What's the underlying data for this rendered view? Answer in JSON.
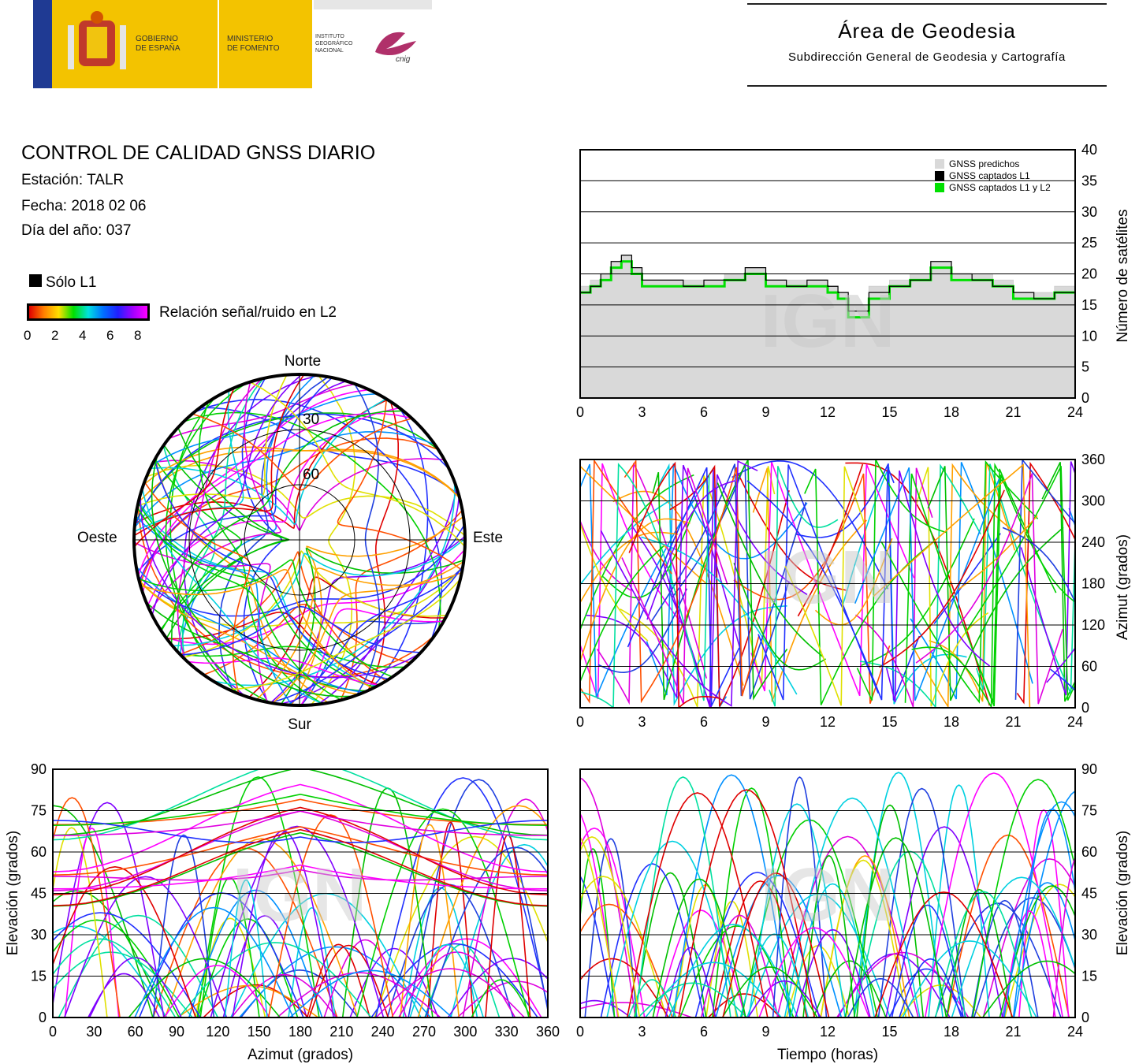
{
  "header": {
    "gov1": "GOBIERNO",
    "gov2": "DE ESPAÑA",
    "min1": "MINISTERIO",
    "min2": "DE FOMENTO",
    "inst1": "INSTITUTO",
    "inst2": "GEOGRÁFICO",
    "inst3": "NACIONAL",
    "cnig": "cnig",
    "area": "Área de Geodesia",
    "sub": "Subdirección General de Geodesia y Cartografía"
  },
  "info": {
    "title": "CONTROL DE CALIDAD GNSS DIARIO",
    "station": "Estación: TALR",
    "date": "Fecha: 2018 02 06",
    "doy": "Día del año: 037"
  },
  "legend": {
    "l1only": "Sólo L1",
    "snr": "Relación señal/ruido en L2",
    "ticks": [
      "0",
      "2",
      "4",
      "6",
      "8"
    ]
  },
  "watermark": "IGN",
  "colors": {
    "accent_yellow": "#f3c300",
    "predicted": "#d9d9d9",
    "l1": "#000000",
    "l1l2": "#00e000"
  },
  "skyplot": {
    "north": "Norte",
    "south": "Sur",
    "east": "Este",
    "west": "Oeste",
    "rings": [
      "30",
      "60"
    ]
  },
  "chart_data": [
    {
      "type": "line",
      "title": "",
      "xlabel": "",
      "ylabel": "Número de satélites",
      "xlim": [
        0,
        24
      ],
      "ylim": [
        0,
        40
      ],
      "xticks": [
        "0",
        "3",
        "6",
        "9",
        "12",
        "15",
        "18",
        "21",
        "24"
      ],
      "yticks": [
        "0",
        "5",
        "10",
        "15",
        "20",
        "25",
        "30",
        "35",
        "40"
      ],
      "legend": [
        "GNSS predichos",
        "GNSS captados L1",
        "GNSS captados L1 y L2"
      ],
      "legend_position": "top-right",
      "series": [
        {
          "name": "GNSS predichos",
          "x": [
            0,
            0.5,
            1,
            1.5,
            2,
            2.5,
            3,
            4,
            5,
            6,
            7,
            8,
            9,
            10,
            11,
            12,
            12.5,
            13,
            13.5,
            14,
            15,
            16,
            17,
            18,
            19,
            20,
            21,
            22,
            23,
            24
          ],
          "values": [
            18,
            19,
            20,
            22,
            23,
            21,
            19,
            19,
            19,
            19,
            20,
            21,
            19,
            19,
            19,
            18,
            17,
            15,
            15,
            18,
            19,
            20,
            22,
            20,
            20,
            19,
            17,
            17,
            18,
            18
          ]
        },
        {
          "name": "GNSS captados L1",
          "x": [
            0,
            0.5,
            1,
            1.5,
            2,
            2.5,
            3,
            4,
            5,
            6,
            7,
            8,
            9,
            10,
            11,
            12,
            12.5,
            13,
            13.5,
            14,
            15,
            16,
            17,
            18,
            19,
            20,
            21,
            22,
            23,
            24
          ],
          "values": [
            17,
            18,
            20,
            22,
            23,
            21,
            19,
            19,
            18,
            19,
            19,
            21,
            19,
            18,
            19,
            18,
            17,
            14,
            14,
            17,
            18,
            19,
            22,
            20,
            19,
            18,
            17,
            16,
            17,
            17
          ]
        },
        {
          "name": "GNSS captados L1 y L2",
          "x": [
            0,
            0.5,
            1,
            1.5,
            2,
            2.5,
            3,
            4,
            5,
            6,
            7,
            8,
            9,
            10,
            11,
            12,
            12.5,
            13,
            13.5,
            14,
            15,
            16,
            17,
            18,
            19,
            20,
            21,
            22,
            23,
            24
          ],
          "values": [
            17,
            18,
            19,
            21,
            22,
            20,
            18,
            18,
            18,
            18,
            19,
            20,
            18,
            18,
            18,
            17,
            16,
            13,
            13,
            16,
            18,
            19,
            21,
            19,
            19,
            18,
            16,
            16,
            17,
            17
          ]
        }
      ]
    },
    {
      "type": "scatter",
      "title": "",
      "xlabel": "",
      "ylabel": "Azimut (grados)",
      "xlim": [
        0,
        24
      ],
      "ylim": [
        0,
        360
      ],
      "xticks": [
        "0",
        "3",
        "6",
        "9",
        "12",
        "15",
        "18",
        "21",
        "24"
      ],
      "yticks": [
        "0",
        "60",
        "120",
        "180",
        "240",
        "300",
        "360"
      ]
    },
    {
      "type": "scatter",
      "title": "",
      "xlabel": "Azimut (grados)",
      "ylabel": "Elevación (grados)",
      "xlim": [
        0,
        360
      ],
      "ylim": [
        0,
        90
      ],
      "xticks": [
        "0",
        "30",
        "60",
        "90",
        "120",
        "150",
        "180",
        "210",
        "240",
        "270",
        "300",
        "330",
        "360"
      ],
      "yticks": [
        "0",
        "15",
        "30",
        "45",
        "60",
        "75",
        "90"
      ]
    },
    {
      "type": "line",
      "title": "",
      "xlabel": "Tiempo (horas)",
      "ylabel": "Elevación (grados)",
      "xlim": [
        0,
        24
      ],
      "ylim": [
        0,
        90
      ],
      "xticks": [
        "0",
        "3",
        "6",
        "9",
        "12",
        "15",
        "18",
        "21",
        "24"
      ],
      "yticks": [
        "0",
        "15",
        "30",
        "45",
        "60",
        "75",
        "90"
      ]
    }
  ]
}
